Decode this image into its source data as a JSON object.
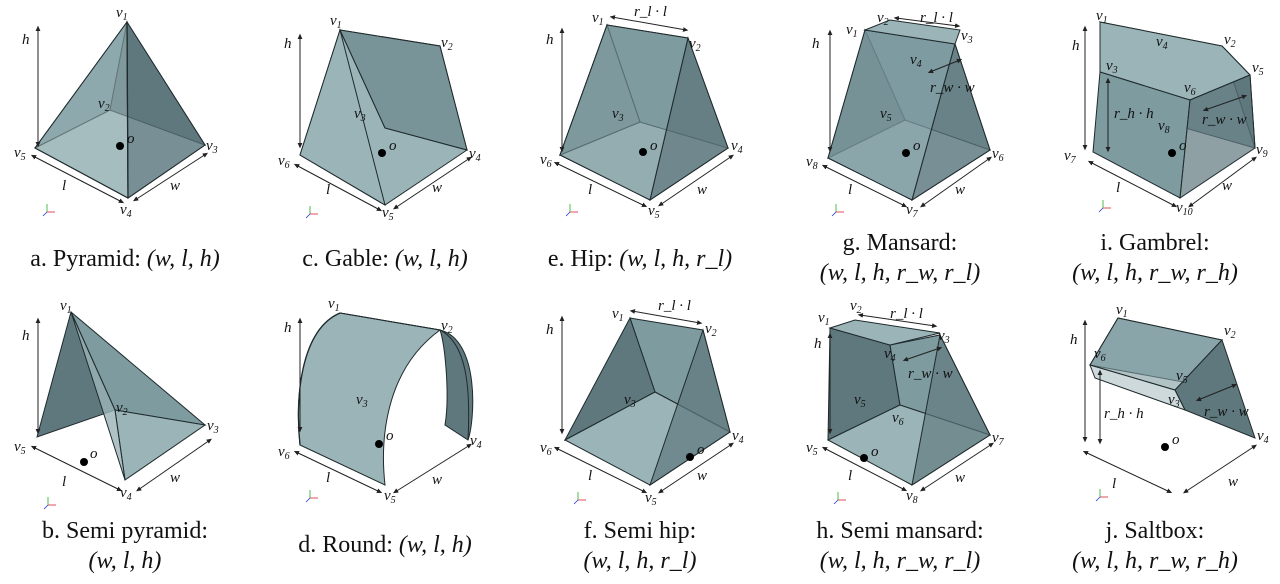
{
  "panels": [
    {
      "id": "a",
      "name": "a. Pyramid:",
      "params": "(w, l, h)"
    },
    {
      "id": "b",
      "name": "b. Semi pyramid:",
      "params": "(w, l, h)"
    },
    {
      "id": "c",
      "name": "c. Gable:",
      "params": "(w, l, h)"
    },
    {
      "id": "d",
      "name": "d. Round:",
      "params": "(w, l, h)"
    },
    {
      "id": "e",
      "name": "e. Hip:",
      "params": "(w, l, h, r_l)"
    },
    {
      "id": "f",
      "name": "f. Semi hip:",
      "params": "(w, l, h, r_l)"
    },
    {
      "id": "g",
      "name": "g. Mansard:",
      "params": "(w, l, h, r_w, r_l)"
    },
    {
      "id": "h",
      "name": "h. Semi mansard:",
      "params": "(w, l, h, r_w, r_l)"
    },
    {
      "id": "i",
      "name": "i. Gambrel:",
      "params": "(w, l, h, r_w, r_h)"
    },
    {
      "id": "j",
      "name": "j. Saltbox:",
      "params": "(w, l, h, r_w, r_h)"
    }
  ],
  "symbols": {
    "h": "h",
    "l": "l",
    "w": "w",
    "o": "o",
    "rl_l": "r_l · l",
    "rw_w": "r_w · w",
    "rh_h": "r_h · h"
  },
  "colors": {
    "face_light": "#9bb4b8",
    "face_dark": "#5f787d",
    "edge": "#1f2a2c"
  }
}
